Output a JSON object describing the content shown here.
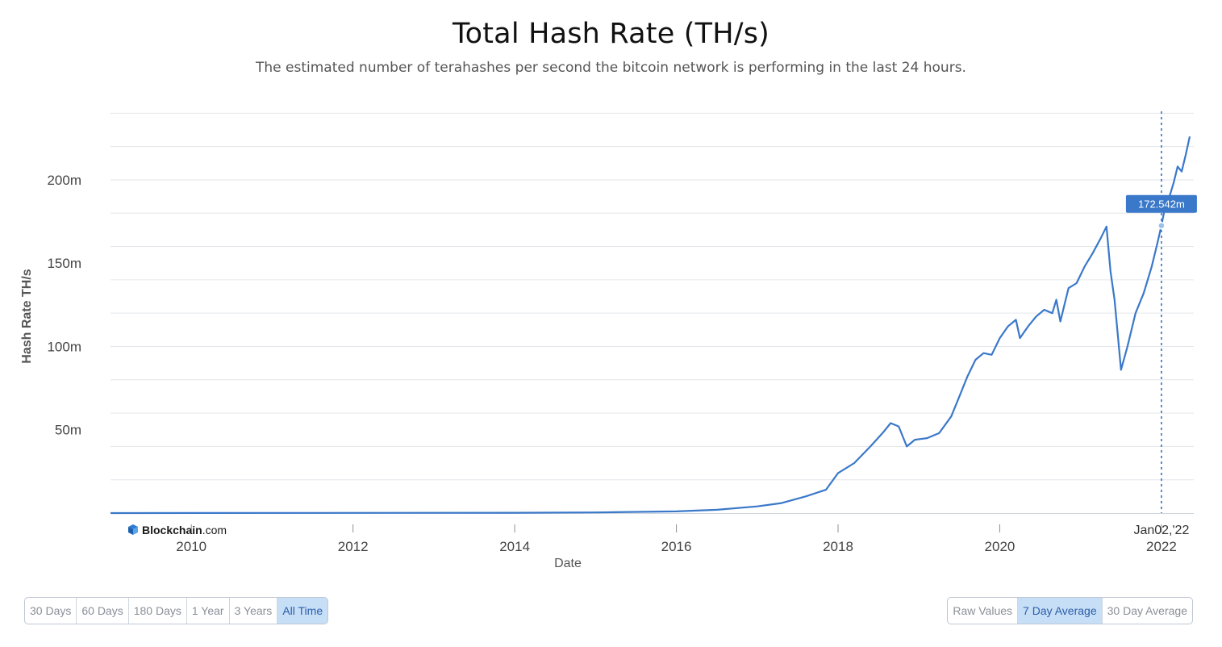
{
  "header": {
    "title": "Total Hash Rate (TH/s)",
    "subtitle": "The estimated number of terahashes per second the bitcoin network is performing in the last 24 hours."
  },
  "watermark": {
    "brand": "Blockchain",
    "suffix": ".com"
  },
  "tooltip": {
    "value_label": "172.542m",
    "date_label": "Jan02,'22"
  },
  "colors": {
    "line": "#3a78c9",
    "grid": "#e3e6ea",
    "tooltip_bg": "#3a78c9",
    "crosshair": "#4a80cc"
  },
  "range_buttons": [
    {
      "label": "30 Days",
      "active": false
    },
    {
      "label": "60 Days",
      "active": false
    },
    {
      "label": "180 Days",
      "active": false
    },
    {
      "label": "1 Year",
      "active": false
    },
    {
      "label": "3 Years",
      "active": false
    },
    {
      "label": "All Time",
      "active": true
    }
  ],
  "average_buttons": [
    {
      "label": "Raw Values",
      "active": false
    },
    {
      "label": "7 Day Average",
      "active": true
    },
    {
      "label": "30 Day Average",
      "active": false
    }
  ],
  "chart_data": {
    "type": "line",
    "title": "Total Hash Rate (TH/s)",
    "xlabel": "Date",
    "ylabel": "Hash Rate TH/s",
    "xlim": [
      2009.0,
      2022.4
    ],
    "ylim": [
      0,
      245
    ],
    "x_ticks": [
      {
        "value": 2010,
        "label": "2010"
      },
      {
        "value": 2012,
        "label": "2012"
      },
      {
        "value": 2014,
        "label": "2014"
      },
      {
        "value": 2016,
        "label": "2016"
      },
      {
        "value": 2018,
        "label": "2018"
      },
      {
        "value": 2020,
        "label": "2020"
      },
      {
        "value": 2022,
        "label": "2022"
      }
    ],
    "y_ticks": [
      {
        "value": 50,
        "label": "50m"
      },
      {
        "value": 100,
        "label": "100m"
      },
      {
        "value": 150,
        "label": "150m"
      },
      {
        "value": 200,
        "label": "200m"
      }
    ],
    "grid": true,
    "crosshair_x": 2022.0,
    "series": [
      {
        "values": [
          [
            2009.0,
            0
          ],
          [
            2014.0,
            0.2
          ],
          [
            2015.0,
            0.4
          ],
          [
            2016.0,
            1
          ],
          [
            2016.5,
            2
          ],
          [
            2017.0,
            4
          ],
          [
            2017.3,
            6
          ],
          [
            2017.6,
            10
          ],
          [
            2017.85,
            14
          ],
          [
            2018.0,
            24
          ],
          [
            2018.2,
            30
          ],
          [
            2018.4,
            40
          ],
          [
            2018.55,
            48
          ],
          [
            2018.65,
            54
          ],
          [
            2018.75,
            52
          ],
          [
            2018.85,
            40
          ],
          [
            2018.95,
            44
          ],
          [
            2019.1,
            45
          ],
          [
            2019.25,
            48
          ],
          [
            2019.4,
            58
          ],
          [
            2019.5,
            70
          ],
          [
            2019.6,
            82
          ],
          [
            2019.7,
            92
          ],
          [
            2019.8,
            96
          ],
          [
            2019.9,
            95
          ],
          [
            2020.0,
            105
          ],
          [
            2020.1,
            112
          ],
          [
            2020.2,
            116
          ],
          [
            2020.25,
            105
          ],
          [
            2020.35,
            112
          ],
          [
            2020.45,
            118
          ],
          [
            2020.55,
            122
          ],
          [
            2020.65,
            120
          ],
          [
            2020.7,
            128
          ],
          [
            2020.75,
            115
          ],
          [
            2020.85,
            135
          ],
          [
            2020.95,
            138
          ],
          [
            2021.05,
            148
          ],
          [
            2021.15,
            156
          ],
          [
            2021.25,
            165
          ],
          [
            2021.32,
            172
          ],
          [
            2021.37,
            145
          ],
          [
            2021.42,
            128
          ],
          [
            2021.5,
            86
          ],
          [
            2021.58,
            100
          ],
          [
            2021.68,
            120
          ],
          [
            2021.78,
            132
          ],
          [
            2021.88,
            148
          ],
          [
            2021.95,
            162
          ],
          [
            2022.0,
            172.5
          ],
          [
            2022.05,
            185
          ],
          [
            2022.1,
            190
          ],
          [
            2022.15,
            198
          ],
          [
            2022.2,
            208
          ],
          [
            2022.25,
            205
          ],
          [
            2022.3,
            215
          ],
          [
            2022.35,
            226
          ]
        ]
      }
    ]
  }
}
